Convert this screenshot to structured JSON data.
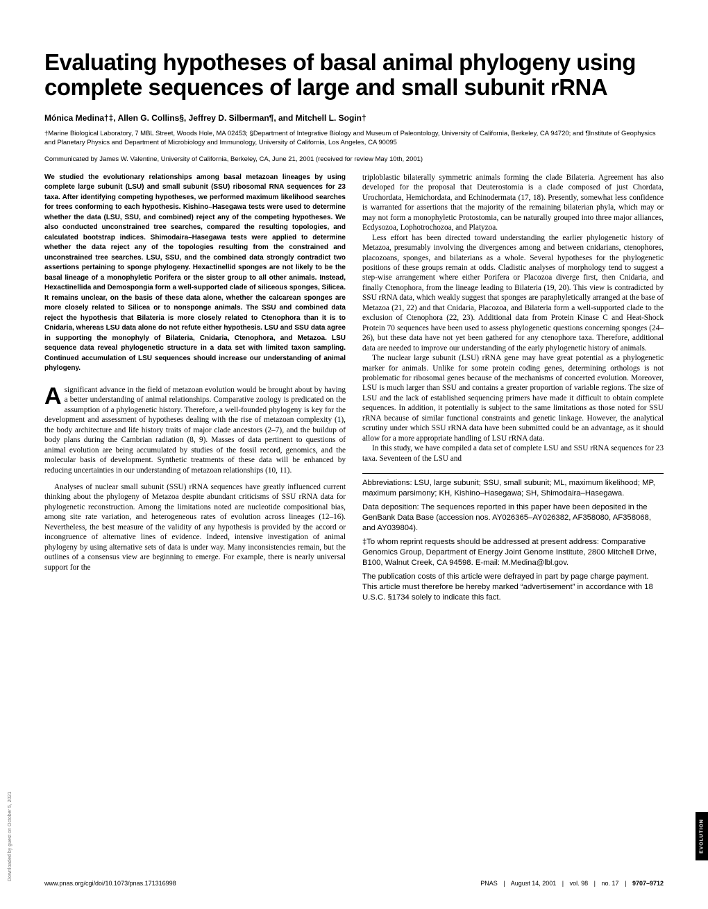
{
  "title": {
    "text": "Evaluating hypotheses of basal animal phylogeny using complete sequences of large and small subunit rRNA",
    "fontsize": 33,
    "color": "#000000"
  },
  "authors": {
    "text": "Mónica Medina†‡, Allen G. Collins§, Jeffrey D. Silberman¶, and Mitchell L. Sogin†",
    "fontsize": 12
  },
  "affiliations": {
    "text": "†Marine Biological Laboratory, 7 MBL Street, Woods Hole, MA 02453; §Department of Integrative Biology and Museum of Paleontology, University of California, Berkeley, CA 94720; and ¶Institute of Geophysics and Planetary Physics and Department of Microbiology and Immunology, University of California, Los Angeles, CA 90095",
    "fontsize": 9.5
  },
  "communicated": {
    "text": "Communicated by James W. Valentine, University of California, Berkeley, CA, June 21, 2001 (received for review May 10th, 2001)",
    "fontsize": 9.5
  },
  "abstract": {
    "text": "We studied the evolutionary relationships among basal metazoan lineages by using complete large subunit (LSU) and small subunit (SSU) ribosomal RNA sequences for 23 taxa. After identifying competing hypotheses, we performed maximum likelihood searches for trees conforming to each hypothesis. Kishino–Hasegawa tests were used to determine whether the data (LSU, SSU, and combined) reject any of the competing hypotheses. We also conducted unconstrained tree searches, compared the resulting topologies, and calculated bootstrap indices. Shimodaira–Hasegawa tests were applied to determine whether the data reject any of the topologies resulting from the constrained and unconstrained tree searches. LSU, SSU, and the combined data strongly contradict two assertions pertaining to sponge phylogeny. Hexactinellid sponges are not likely to be the basal lineage of a monophyletic Porifera or the sister group to all other animals. Instead, Hexactinellida and Demospongia form a well-supported clade of siliceous sponges, Silicea. It remains unclear, on the basis of these data alone, whether the calcarean sponges are more closely related to Silicea or to nonsponge animals. The SSU and combined data reject the hypothesis that Bilateria is more closely related to Ctenophora than it is to Cnidaria, whereas LSU data alone do not refute either hypothesis. LSU and SSU data agree in supporting the monophyly of Bilateria, Cnidaria, Ctenophora, and Metazoa. LSU sequence data reveal phylogenetic structure in a data set with limited taxon sampling. Continued accumulation of LSU sequences should increase our understanding of animal phylogeny.",
    "fontsize": 10
  },
  "dropcap": {
    "letter": "A",
    "fontsize": 34
  },
  "body": {
    "fontsize": 11.3,
    "left_paras": [
      "significant advance in the field of metazoan evolution would be brought about by having a better understanding of animal relationships. Comparative zoology is predicated on the assumption of a phylogenetic history. Therefore, a well-founded phylogeny is key for the development and assessment of hypotheses dealing with the rise of metazoan complexity (1), the body architecture and life history traits of major clade ancestors (2–7), and the buildup of body plans during the Cambrian radiation (8, 9). Masses of data pertinent to questions of animal evolution are being accumulated by studies of the fossil record, genomics, and the molecular basis of development. Synthetic treatments of these data will be enhanced by reducing uncertainties in our understanding of metazoan relationships (10, 11).",
      "Analyses of nuclear small subunit (SSU) rRNA sequences have greatly influenced current thinking about the phylogeny of Metazoa despite abundant criticisms of SSU rRNA data for phylogenetic reconstruction. Among the limitations noted are nucleotide compositional bias, among site rate variation, and heterogeneous rates of evolution across lineages (12–16). Nevertheless, the best measure of the validity of any hypothesis is provided by the accord or incongruence of alternative lines of evidence. Indeed, intensive investigation of animal phylogeny by using alternative sets of data is under way. Many inconsistencies remain, but the outlines of a consensus view are beginning to emerge. For example, there is nearly universal support for the"
    ],
    "right_paras": [
      "triploblastic bilaterally symmetric animals forming the clade Bilateria. Agreement has also developed for the proposal that Deuterostomia is a clade composed of just Chordata, Urochordata, Hemichordata, and Echinodermata (17, 18). Presently, somewhat less confidence is warranted for assertions that the majority of the remaining bilaterian phyla, which may or may not form a monophyletic Protostomia, can be naturally grouped into three major alliances, Ecdysozoa, Lophotrochozoa, and Platyzoa.",
      "Less effort has been directed toward understanding the earlier phylogenetic history of Metazoa, presumably involving the divergences among and between cnidarians, ctenophores, placozoans, sponges, and bilaterians as a whole. Several hypotheses for the phylogenetic positions of these groups remain at odds. Cladistic analyses of morphology tend to suggest a step-wise arrangement where either Porifera or Placozoa diverge first, then Cnidaria, and finally Ctenophora, from the lineage leading to Bilateria (19, 20). This view is contradicted by SSU rRNA data, which weakly suggest that sponges are paraphyletically arranged at the base of Metazoa (21, 22) and that Cnidaria, Placozoa, and Bilateria form a well-supported clade to the exclusion of Ctenophora (22, 23). Additional data from Protein Kinase C and Heat-Shock Protein 70 sequences have been used to assess phylogenetic questions concerning sponges (24–26), but these data have not yet been gathered for any ctenophore taxa. Therefore, additional data are needed to improve our understanding of the early phylogenetic history of animals.",
      "The nuclear large subunit (LSU) rRNA gene may have great potential as a phylogenetic marker for animals. Unlike for some protein coding genes, determining orthologs is not problematic for ribosomal genes because of the mechanisms of concerted evolution. Moreover, LSU is much larger than SSU and contains a greater proportion of variable regions. The size of LSU and the lack of established sequencing primers have made it difficult to obtain complete sequences. In addition, it potentially is subject to the same limitations as those noted for SSU rRNA because of similar functional constraints and genetic linkage. However, the analytical scrutiny under which SSU rRNA data have been submitted could be an advantage, as it should allow for a more appropriate handling of LSU rRNA data.",
      "In this study, we have compiled a data set of complete LSU and SSU rRNA sequences for 23 taxa. Seventeen of the LSU and"
    ]
  },
  "footnotes": {
    "fontsize": 8.5,
    "items": [
      "Abbreviations: LSU, large subunit; SSU, small subunit; ML, maximum likelihood; MP, maximum parsimony; KH, Kishino–Hasegawa; SH, Shimodaira–Hasegawa.",
      "Data deposition: The sequences reported in this paper have been deposited in the GenBank Data Base (accession nos. AY026365–AY026382, AF358080, AF358068, and AY039804).",
      "‡To whom reprint requests should be addressed at present address: Comparative Genomics Group, Department of Energy Joint Genome Institute, 2800 Mitchell Drive, B100, Walnut Creek, CA 94598. E-mail: M.Medina@lbl.gov.",
      "The publication costs of this article were defrayed in part by page charge payment. This article must therefore be hereby marked “advertisement” in accordance with 18 U.S.C. §1734 solely to indicate this fact."
    ]
  },
  "footer": {
    "fontsize": 9,
    "left": "www.pnas.org/cgi/doi/10.1073/pnas.171316998",
    "right_parts": [
      "PNAS",
      "August 14, 2001",
      "vol. 98",
      "no. 17",
      "9707–9712"
    ]
  },
  "side_tab": {
    "text": "EVOLUTION",
    "fontsize": 7
  },
  "download_note": {
    "text": "Downloaded by guest on October 5, 2021",
    "fontsize": 7
  }
}
